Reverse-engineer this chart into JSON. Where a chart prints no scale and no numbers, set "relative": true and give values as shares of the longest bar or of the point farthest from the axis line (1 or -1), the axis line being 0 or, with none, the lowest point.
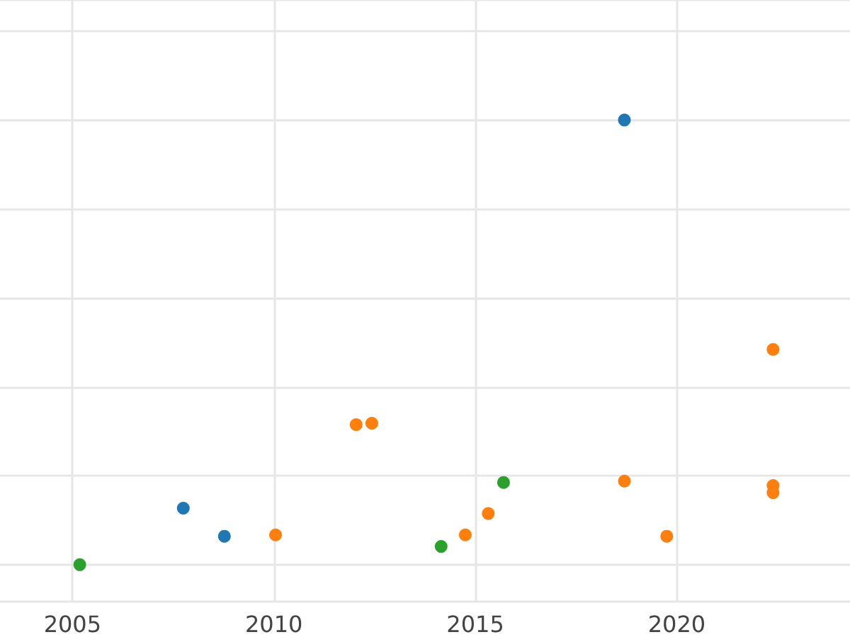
{
  "chart_data": {
    "type": "scatter",
    "relative": true,
    "xlim": [
      2003.2,
      2024.3
    ],
    "xticks": [
      2005,
      2010,
      2015,
      2020
    ],
    "grid": true,
    "marker": "circle",
    "series": [
      {
        "color": "#1f77b4",
        "x": [
          2007.75,
          2008.77,
          2018.7
        ],
        "values": [
          0.127,
          0.064,
          1
        ]
      },
      {
        "color": "#ff7f0e",
        "x": [
          2010.04,
          2012.04,
          2012.43,
          2014.75,
          2015.32,
          2018.7,
          2019.75,
          2022.39,
          2022.39,
          2022.39
        ],
        "values": [
          0.067,
          0.315,
          0.318,
          0.067,
          0.115,
          0.188,
          0.064,
          0.484,
          0.178,
          0.162
        ]
      },
      {
        "color": "#2ca02c",
        "x": [
          2005.18,
          2014.15,
          2015.7
        ],
        "values": [
          0,
          0.041,
          0.185
        ]
      }
    ]
  }
}
